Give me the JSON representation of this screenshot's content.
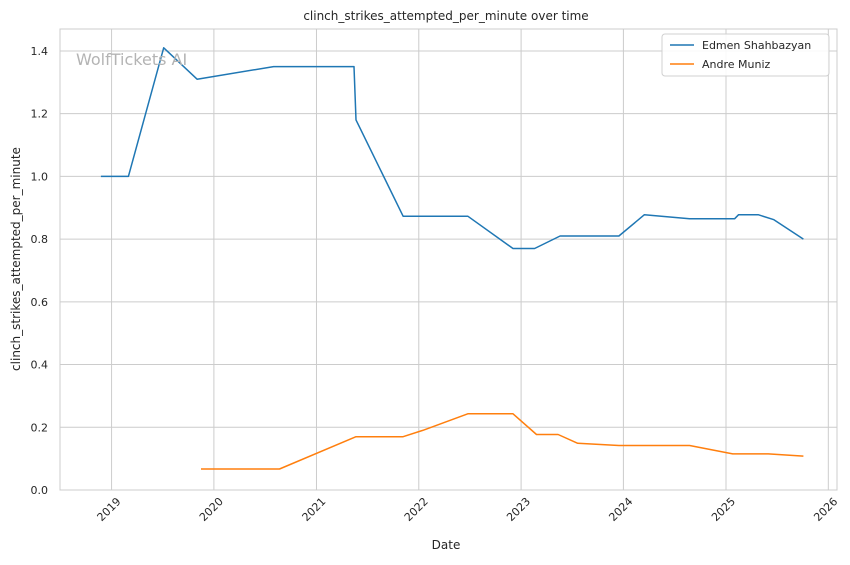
{
  "chart_data": {
    "type": "line",
    "title": "clinch_strikes_attempted_per_minute over time",
    "xlabel": "Date",
    "ylabel": "clinch_strikes_attempted_per_minute",
    "watermark": "WolfTickets AI",
    "x_ticks": [
      "2019",
      "2020",
      "2021",
      "2022",
      "2023",
      "2024",
      "2025",
      "2026"
    ],
    "y_ticks": [
      "0.0",
      "0.2",
      "0.4",
      "0.6",
      "0.8",
      "1.0",
      "1.2",
      "1.4"
    ],
    "xlim": [
      "2018-07-01",
      "2026-02-01"
    ],
    "ylim": [
      0,
      1.47
    ],
    "grid": true,
    "legend_position": "top-right",
    "series": [
      {
        "name": "Edmen Shahbazyan",
        "color": "#1f77b4",
        "points": [
          [
            "2018-11-24",
            1.0
          ],
          [
            "2019-03-02",
            1.0
          ],
          [
            "2019-07-06",
            1.41
          ],
          [
            "2019-11-02",
            1.31
          ],
          [
            "2020-08-01",
            1.35
          ],
          [
            "2021-05-15",
            1.35
          ],
          [
            "2021-05-22",
            1.18
          ],
          [
            "2021-11-06",
            0.873
          ],
          [
            "2022-06-25",
            0.873
          ],
          [
            "2022-12-03",
            0.77
          ],
          [
            "2023-02-18",
            0.77
          ],
          [
            "2023-05-20",
            0.81
          ],
          [
            "2023-12-16",
            0.81
          ],
          [
            "2024-03-16",
            0.878
          ],
          [
            "2024-08-24",
            0.865
          ],
          [
            "2025-02-01",
            0.865
          ],
          [
            "2025-02-15",
            0.878
          ],
          [
            "2025-04-26",
            0.878
          ],
          [
            "2025-06-21",
            0.862
          ],
          [
            "2025-10-04",
            0.8
          ]
        ]
      },
      {
        "name": "Andre Muniz",
        "color": "#ff7f0e",
        "points": [
          [
            "2019-11-16",
            0.067
          ],
          [
            "2020-08-22",
            0.067
          ],
          [
            "2021-05-22",
            0.17
          ],
          [
            "2021-11-06",
            0.17
          ],
          [
            "2022-01-15",
            0.19
          ],
          [
            "2022-06-25",
            0.243
          ],
          [
            "2022-12-03",
            0.243
          ],
          [
            "2023-02-25",
            0.177
          ],
          [
            "2023-05-13",
            0.177
          ],
          [
            "2023-07-22",
            0.149
          ],
          [
            "2023-12-16",
            0.142
          ],
          [
            "2024-08-24",
            0.142
          ],
          [
            "2025-01-25",
            0.115
          ],
          [
            "2025-06-01",
            0.115
          ],
          [
            "2025-10-04",
            0.108
          ]
        ]
      }
    ]
  }
}
